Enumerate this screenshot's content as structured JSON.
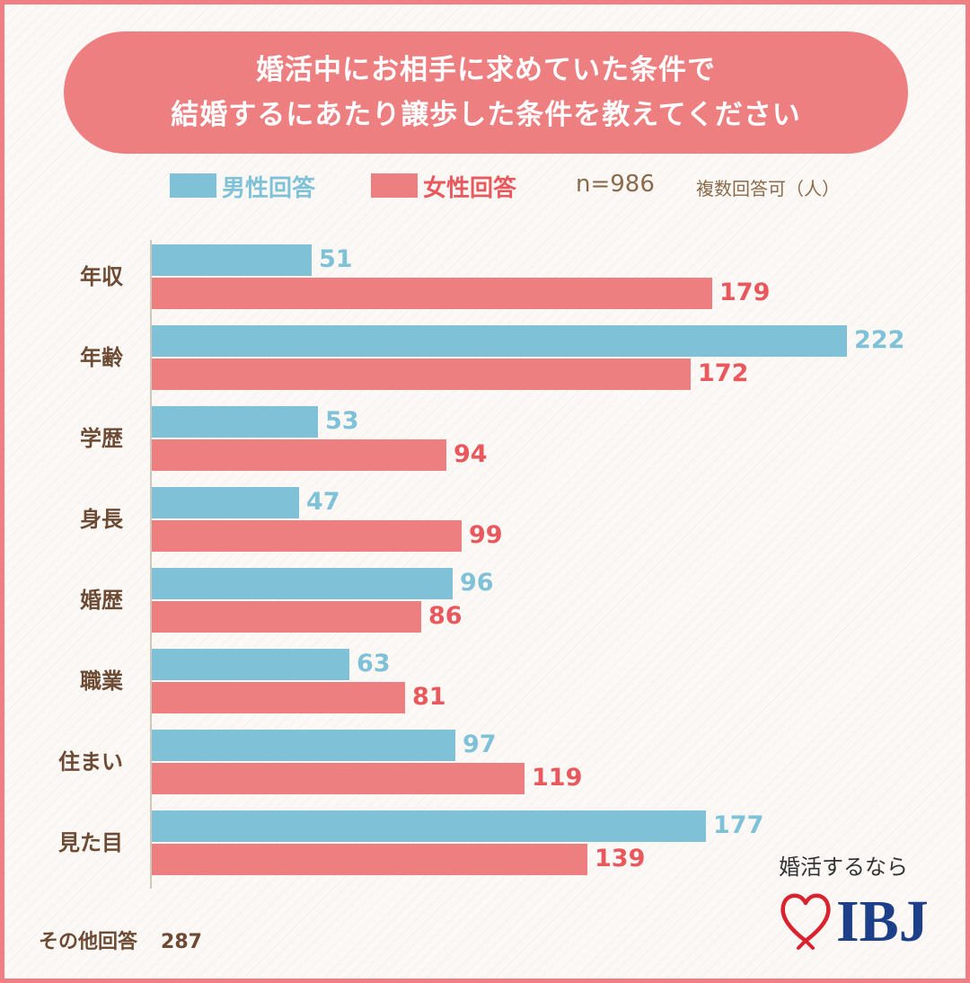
{
  "title": {
    "line1": "婚活中にお相手に求めていた条件で",
    "line2": "結婚するにあたり譲歩した条件を教えてください"
  },
  "legend": {
    "male_label": "男性回答",
    "female_label": "女性回答",
    "sample_size": "n=986",
    "note": "複数回答可（人）"
  },
  "colors": {
    "male": "#7fc2d7",
    "female": "#ee7f80",
    "accent": "#ee7f80",
    "label_brown": "#6d4a33"
  },
  "chart_data": {
    "type": "bar",
    "orientation": "horizontal",
    "categories": [
      "年収",
      "年齢",
      "学歴",
      "身長",
      "婚歴",
      "職業",
      "住まい",
      "見た目"
    ],
    "series": [
      {
        "name": "男性回答",
        "values": [
          51,
          222,
          53,
          47,
          96,
          63,
          97,
          177
        ]
      },
      {
        "name": "女性回答",
        "values": [
          179,
          172,
          94,
          99,
          86,
          81,
          119,
          139
        ]
      }
    ],
    "xlim": [
      0,
      222
    ],
    "grid": false,
    "legend_position": "top"
  },
  "other": {
    "label": "その他回答",
    "value": "287"
  },
  "brand": {
    "tagline": "婚活するなら",
    "logo_text": "IBJ",
    "logo_icon": "heart-icon"
  }
}
